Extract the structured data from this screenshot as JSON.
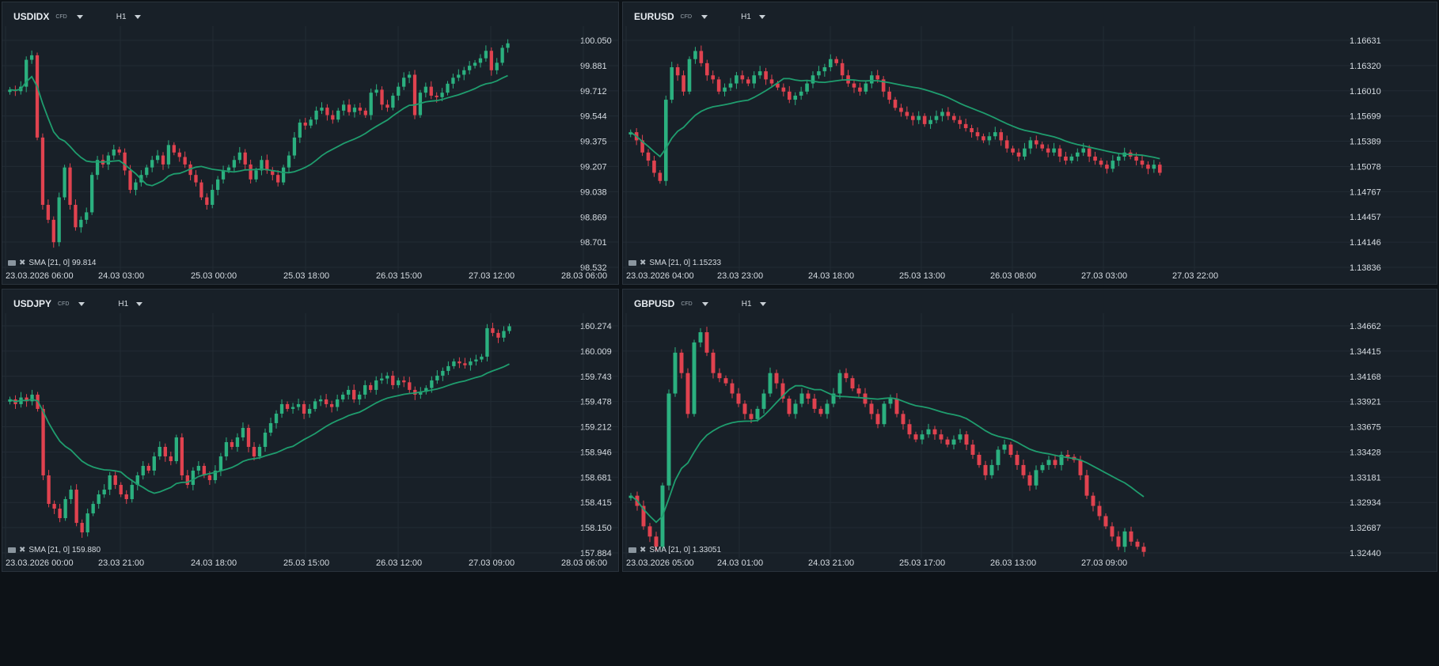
{
  "colors": {
    "up": "#2bb07f",
    "down": "#e0424f",
    "sma": "#1f9d6e",
    "bg": "#182028",
    "grid": "#222b34",
    "text": "#d6dce2"
  },
  "icons": [
    "chevron-down-icon",
    "visibility-icon",
    "close-icon"
  ],
  "panels": [
    {
      "symbol": "USDIDX",
      "type": "CFD",
      "timeframe": "H1",
      "indicator": "SMA [21, 0] 99.814",
      "chart_data": {
        "type": "candlestick",
        "yticks": [
          "100.050",
          "99.881",
          "99.712",
          "99.544",
          "99.375",
          "99.207",
          "99.038",
          "98.869",
          "98.701",
          "98.532"
        ],
        "ylim": [
          98.532,
          100.05
        ],
        "xticks": [
          "23.03.2026 06:00",
          "24.03 03:00",
          "25.03 00:00",
          "25.03 18:00",
          "26.03 15:00",
          "27.03 12:00",
          "28.03 06:00"
        ],
        "sma_period": 21,
        "close": [
          99.72,
          99.71,
          99.74,
          99.92,
          99.95,
          99.4,
          98.95,
          98.85,
          98.7,
          99.0,
          99.2,
          98.95,
          98.8,
          98.85,
          98.9,
          99.15,
          99.25,
          99.22,
          99.28,
          99.32,
          99.3,
          99.18,
          99.05,
          99.1,
          99.15,
          99.2,
          99.25,
          99.28,
          99.22,
          99.35,
          99.3,
          99.27,
          99.22,
          99.15,
          99.1,
          99.0,
          98.95,
          99.05,
          99.12,
          99.18,
          99.2,
          99.25,
          99.3,
          99.22,
          99.12,
          99.18,
          99.25,
          99.18,
          99.15,
          99.1,
          99.2,
          99.28,
          99.4,
          99.5,
          99.48,
          99.52,
          99.58,
          99.6,
          99.55,
          99.52,
          99.58,
          99.62,
          99.57,
          99.6,
          99.58,
          99.55,
          99.7,
          99.72,
          99.62,
          99.6,
          99.68,
          99.74,
          99.8,
          99.82,
          99.55,
          99.7,
          99.74,
          99.68,
          99.67,
          99.7,
          99.76,
          99.8,
          99.82,
          99.85,
          99.88,
          99.9,
          99.93,
          99.98,
          99.85,
          99.9,
          100.0,
          100.03
        ]
      }
    },
    {
      "symbol": "EURUSD",
      "type": "CFD",
      "timeframe": "H1",
      "indicator": "SMA [21, 0] 1.15233",
      "chart_data": {
        "type": "candlestick",
        "yticks": [
          "1.16631",
          "1.16320",
          "1.16010",
          "1.15699",
          "1.15389",
          "1.15078",
          "1.14767",
          "1.14457",
          "1.14146",
          "1.13836"
        ],
        "ylim": [
          1.13836,
          1.16631
        ],
        "xticks": [
          "23.03.2026 04:00",
          "23.03 23:00",
          "24.03 18:00",
          "25.03 13:00",
          "26.03 08:00",
          "27.03 03:00",
          "27.03 22:00"
        ],
        "sma_period": 21,
        "close": [
          1.155,
          1.154,
          1.1525,
          1.1515,
          1.15,
          1.149,
          1.159,
          1.163,
          1.162,
          1.16,
          1.164,
          1.165,
          1.1635,
          1.162,
          1.1615,
          1.16,
          1.1605,
          1.161,
          1.162,
          1.1615,
          1.161,
          1.162,
          1.1625,
          1.1615,
          1.161,
          1.1605,
          1.16,
          1.159,
          1.1595,
          1.16,
          1.161,
          1.162,
          1.1625,
          1.163,
          1.164,
          1.1635,
          1.162,
          1.161,
          1.1605,
          1.16,
          1.161,
          1.162,
          1.1615,
          1.16,
          1.159,
          1.158,
          1.1575,
          1.157,
          1.1565,
          1.157,
          1.156,
          1.1565,
          1.157,
          1.1575,
          1.157,
          1.1565,
          1.156,
          1.1555,
          1.155,
          1.1545,
          1.154,
          1.1545,
          1.155,
          1.154,
          1.153,
          1.1525,
          1.152,
          1.153,
          1.154,
          1.1535,
          1.153,
          1.1525,
          1.153,
          1.152,
          1.1515,
          1.152,
          1.1525,
          1.153,
          1.152,
          1.1515,
          1.151,
          1.1505,
          1.1515,
          1.152,
          1.1525,
          1.152,
          1.1515,
          1.151,
          1.1505,
          1.151,
          1.15
        ]
      }
    },
    {
      "symbol": "USDJPY",
      "type": "CFD",
      "timeframe": "H1",
      "indicator": "SMA [21, 0] 159.880",
      "chart_data": {
        "type": "candlestick",
        "yticks": [
          "160.274",
          "160.009",
          "159.743",
          "159.478",
          "159.212",
          "158.946",
          "158.681",
          "158.415",
          "158.150",
          "157.884"
        ],
        "ylim": [
          157.884,
          160.274
        ],
        "xticks": [
          "23.03.2026 00:00",
          "23.03 21:00",
          "24.03 18:00",
          "25.03 15:00",
          "26.03 12:00",
          "27.03 09:00",
          "28.03 06:00"
        ],
        "sma_period": 21,
        "close": [
          159.5,
          159.45,
          159.52,
          159.48,
          159.55,
          159.4,
          158.7,
          158.4,
          158.35,
          158.25,
          158.45,
          158.55,
          158.2,
          158.1,
          158.3,
          158.4,
          158.5,
          158.55,
          158.7,
          158.6,
          158.5,
          158.45,
          158.6,
          158.7,
          158.8,
          158.75,
          158.9,
          159.0,
          158.9,
          158.85,
          159.1,
          158.7,
          158.6,
          158.75,
          158.8,
          158.7,
          158.65,
          158.75,
          158.9,
          159.05,
          159.0,
          159.1,
          159.2,
          159.0,
          158.9,
          159.0,
          159.15,
          159.25,
          159.35,
          159.45,
          159.4,
          159.42,
          159.45,
          159.35,
          159.4,
          159.48,
          159.5,
          159.45,
          159.42,
          159.5,
          159.55,
          159.6,
          159.5,
          159.55,
          159.65,
          159.6,
          159.7,
          159.72,
          159.75,
          159.65,
          159.7,
          159.68,
          159.6,
          159.55,
          159.58,
          159.62,
          159.7,
          159.75,
          159.8,
          159.85,
          159.9,
          159.88,
          159.86,
          159.9,
          159.92,
          159.95,
          160.25,
          160.2,
          160.15,
          160.22,
          160.27
        ]
      }
    },
    {
      "symbol": "GBPUSD",
      "type": "CFD",
      "timeframe": "H1",
      "indicator": "SMA [21, 0] 1.33051",
      "chart_data": {
        "type": "candlestick",
        "yticks": [
          "1.34662",
          "1.34415",
          "1.34168",
          "1.33921",
          "1.33675",
          "1.33428",
          "1.33181",
          "1.32934",
          "1.32687",
          "1.32440"
        ],
        "ylim": [
          1.3244,
          1.34662
        ],
        "xticks": [
          "23.03.2026 05:00",
          "24.03 01:00",
          "24.03 21:00",
          "25.03 17:00",
          "26.03 13:00",
          "27.03 09:00"
        ],
        "sma_period": 21,
        "close": [
          1.33,
          1.329,
          1.327,
          1.326,
          1.325,
          1.331,
          1.34,
          1.344,
          1.342,
          1.338,
          1.345,
          1.346,
          1.344,
          1.342,
          1.3415,
          1.341,
          1.34,
          1.339,
          1.338,
          1.3375,
          1.3385,
          1.34,
          1.342,
          1.341,
          1.3395,
          1.338,
          1.339,
          1.34,
          1.3395,
          1.3385,
          1.338,
          1.339,
          1.34,
          1.342,
          1.3415,
          1.3405,
          1.34,
          1.339,
          1.338,
          1.337,
          1.339,
          1.3395,
          1.338,
          1.337,
          1.336,
          1.3355,
          1.336,
          1.3365,
          1.336,
          1.3355,
          1.335,
          1.3355,
          1.336,
          1.335,
          1.334,
          1.333,
          1.332,
          1.333,
          1.3345,
          1.335,
          1.334,
          1.333,
          1.332,
          1.331,
          1.3325,
          1.333,
          1.3335,
          1.333,
          1.334,
          1.3338,
          1.3335,
          1.332,
          1.33,
          1.329,
          1.328,
          1.327,
          1.326,
          1.325,
          1.3265,
          1.3255,
          1.325,
          1.3245
        ]
      }
    }
  ]
}
